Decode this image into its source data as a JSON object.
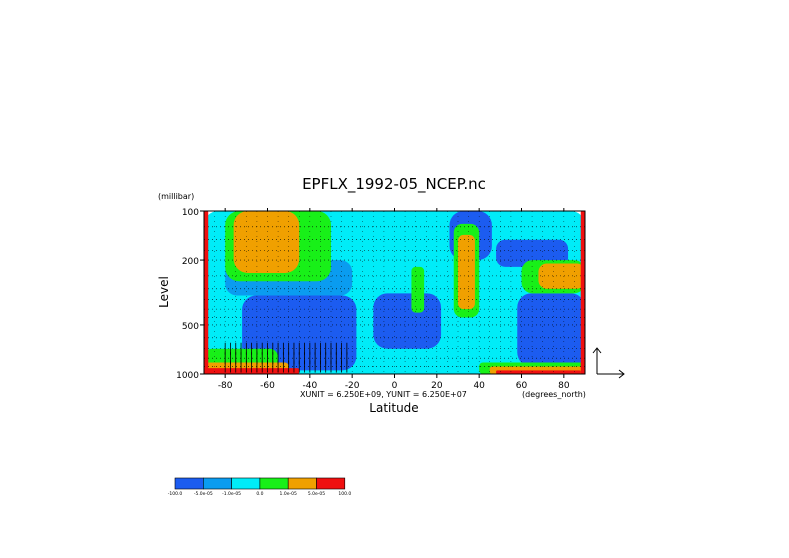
{
  "chart_data": {
    "type": "heatmap",
    "title": "EPFLX_1992-05_NCEP.nc",
    "xlabel": "Latitude",
    "ylabel": "Level",
    "y_units": "(millibar)",
    "x_units": "(degrees_north)",
    "unit_note": "XUNIT = 6.250E+09, YUNIT = 6.250E+07",
    "xlim": [
      -90,
      90
    ],
    "ylim": [
      1000,
      100
    ],
    "y_scale": "log",
    "x_ticks": [
      -80,
      -60,
      -40,
      -20,
      0,
      20,
      40,
      60,
      80
    ],
    "x_tick_labels": [
      "-80",
      "-60",
      "-40",
      "-20",
      "0",
      "20",
      "40",
      "60",
      "80"
    ],
    "y_ticks": [
      100,
      200,
      500,
      1000
    ],
    "y_tick_labels": [
      "100",
      "200",
      "500",
      "1000"
    ],
    "grid": true,
    "vector_overlay": true,
    "colorbar": {
      "placement": "bottom-left",
      "colors": [
        "#1c5cf0",
        "#0a9cf0",
        "#00ecf8",
        "#18f018",
        "#f0a000",
        "#f01010"
      ],
      "tick_labels": [
        "-100.0",
        "-5.0e-05",
        "-1.0e-05",
        "0.0",
        "1.0e-05",
        "5.0e-05",
        "100.0"
      ]
    },
    "regions": [
      {
        "level": 3,
        "lat": [
          -90,
          90
        ],
        "p": [
          100,
          1000
        ]
      },
      {
        "level": 1,
        "lat": [
          -72,
          -18
        ],
        "p": [
          330,
          950
        ]
      },
      {
        "level": 1,
        "lat": [
          -10,
          22
        ],
        "p": [
          320,
          700
        ]
      },
      {
        "level": 1,
        "lat": [
          26,
          46
        ],
        "p": [
          100,
          200
        ]
      },
      {
        "level": 1,
        "lat": [
          48,
          82
        ],
        "p": [
          150,
          220
        ]
      },
      {
        "level": 1,
        "lat": [
          58,
          90
        ],
        "p": [
          320,
          900
        ]
      },
      {
        "level": 2,
        "lat": [
          -80,
          -20
        ],
        "p": [
          200,
          330
        ]
      },
      {
        "level": 4,
        "lat": [
          -80,
          -30
        ],
        "p": [
          100,
          270
        ]
      },
      {
        "level": 5,
        "lat": [
          -76,
          -45
        ],
        "p": [
          100,
          240
        ]
      },
      {
        "level": 4,
        "lat": [
          28,
          40
        ],
        "p": [
          120,
          450
        ]
      },
      {
        "level": 5,
        "lat": [
          30,
          38
        ],
        "p": [
          140,
          400
        ]
      },
      {
        "level": 4,
        "lat": [
          8,
          14
        ],
        "p": [
          220,
          420
        ]
      },
      {
        "level": 4,
        "lat": [
          60,
          90
        ],
        "p": [
          200,
          320
        ]
      },
      {
        "level": 5,
        "lat": [
          68,
          90
        ],
        "p": [
          210,
          300
        ]
      },
      {
        "level": 4,
        "lat": [
          40,
          90
        ],
        "p": [
          850,
          1000
        ]
      },
      {
        "level": 5,
        "lat": [
          45,
          90
        ],
        "p": [
          900,
          1000
        ]
      },
      {
        "level": 6,
        "lat": [
          48,
          88
        ],
        "p": [
          950,
          1000
        ]
      },
      {
        "level": 4,
        "lat": [
          -90,
          -55
        ],
        "p": [
          700,
          1000
        ]
      },
      {
        "level": 5,
        "lat": [
          -90,
          -50
        ],
        "p": [
          850,
          1000
        ]
      },
      {
        "level": 6,
        "lat": [
          -90,
          -45
        ],
        "p": [
          920,
          1000
        ]
      },
      {
        "level": 6,
        "lat": [
          -90,
          -88
        ],
        "p": [
          100,
          1000
        ]
      },
      {
        "level": 6,
        "lat": [
          88,
          90
        ],
        "p": [
          100,
          1000
        ]
      }
    ]
  }
}
